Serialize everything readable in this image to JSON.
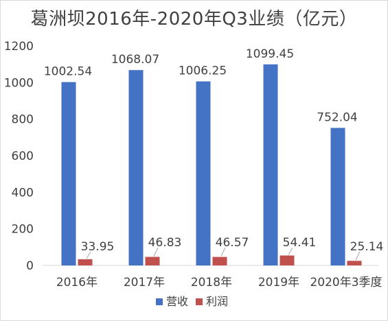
{
  "chart_data": {
    "type": "bar",
    "title": "葛洲坝2016年-2020年Q3业绩（亿元）",
    "categories": [
      "2016年",
      "2017年",
      "2018年",
      "2019年",
      "2020年3季度"
    ],
    "series": [
      {
        "name": "营收",
        "values": [
          1002.54,
          1068.07,
          1006.25,
          1099.45,
          752.04
        ],
        "labels": [
          "1002.54",
          "1068.07",
          "1006.25",
          "1099.45",
          "752.04"
        ],
        "color": "#4472C4"
      },
      {
        "name": "利润",
        "values": [
          33.95,
          46.83,
          46.57,
          54.41,
          25.14
        ],
        "labels": [
          "33.95",
          "46.83",
          "46.57",
          "54.41",
          "25.14"
        ],
        "color": "#C0504D"
      }
    ],
    "ylim": [
      0,
      1200
    ],
    "yticks": [
      "0",
      "200",
      "400",
      "600",
      "800",
      "1000",
      "1200"
    ],
    "xlabel": "",
    "ylabel": "",
    "grid": false,
    "legend": "bottom"
  }
}
